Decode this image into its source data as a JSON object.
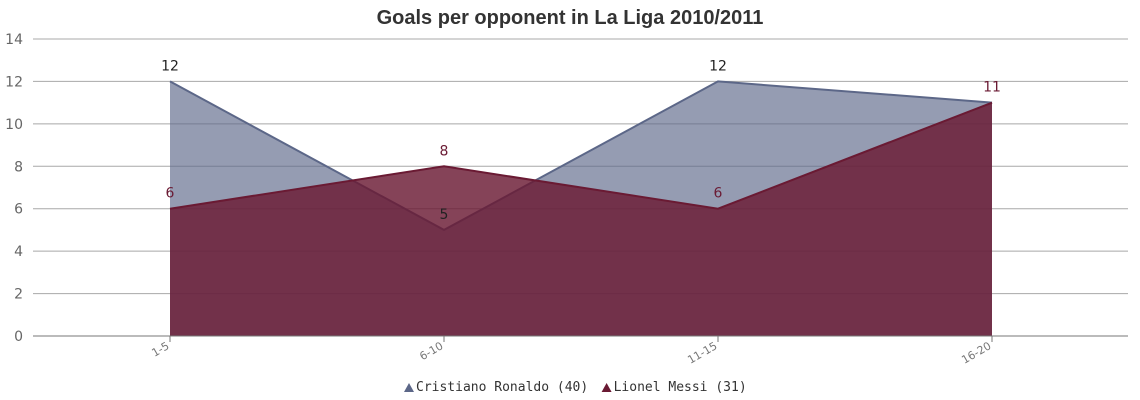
{
  "colors": {
    "ronaldo": "#5c6788",
    "messi": "#6a1a33",
    "grid": "#a8a8a8",
    "axis": "#777777"
  },
  "chart_data": {
    "type": "area",
    "title": "Goals per opponent in La Liga 2010/2011",
    "xlabel": "",
    "ylabel": "",
    "categories": [
      "1-5",
      "6-10",
      "11-15",
      "16-20"
    ],
    "ylim": [
      0,
      14
    ],
    "yticks": [
      0,
      2,
      4,
      6,
      8,
      10,
      12,
      14
    ],
    "grid": true,
    "legend_position": "bottom-center",
    "series": [
      {
        "name": "Cristiano Ronaldo (40)",
        "values": [
          12,
          5,
          12,
          11
        ],
        "color": "#5c6788",
        "labels": [
          "12",
          "5",
          "12",
          ""
        ]
      },
      {
        "name": "Lionel Messi (31)",
        "values": [
          6,
          8,
          6,
          11
        ],
        "color": "#6a1a33",
        "labels": [
          "6",
          "8",
          "6",
          "11"
        ]
      }
    ]
  }
}
